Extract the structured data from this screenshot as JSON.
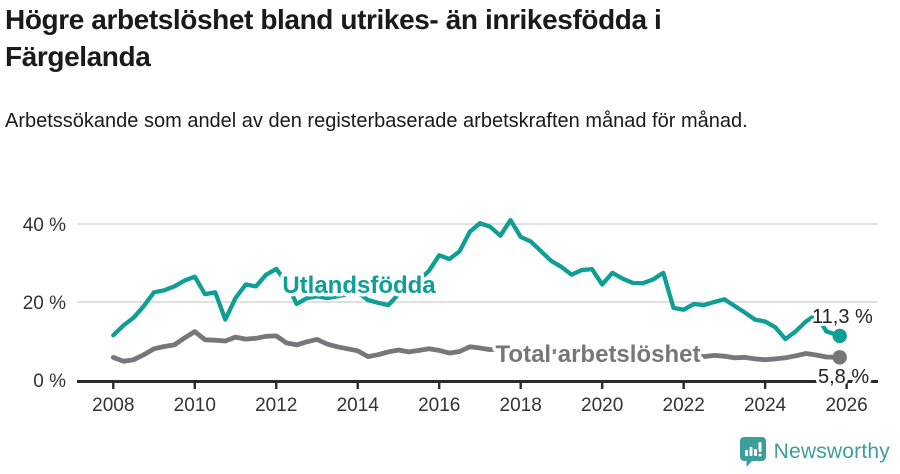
{
  "header": {
    "title": "Högre arbetslöshet bland utrikes- än inrikesfödda i Färgelanda",
    "subtitle": "Arbetssökande som andel av den registerbaserade arbetskraften månad för månad."
  },
  "chart_data": {
    "type": "line",
    "title": "Högre arbetslöshet bland utrikes- än inrikesfödda i Färgelanda",
    "xlabel": "",
    "ylabel": "",
    "grid": "horizontal-only",
    "xlim": [
      2007.1,
      2026.8
    ],
    "ylim": [
      0,
      44
    ],
    "x": [
      2008.0,
      2008.25,
      2008.5,
      2008.75,
      2009.0,
      2009.25,
      2009.5,
      2009.75,
      2010.0,
      2010.25,
      2010.5,
      2010.75,
      2011.0,
      2011.25,
      2011.5,
      2011.75,
      2012.0,
      2012.25,
      2012.5,
      2012.75,
      2013.0,
      2013.25,
      2013.5,
      2013.75,
      2014.0,
      2014.25,
      2014.5,
      2014.75,
      2015.0,
      2015.25,
      2015.5,
      2015.75,
      2016.0,
      2016.25,
      2016.5,
      2016.75,
      2017.0,
      2017.25,
      2017.5,
      2017.75,
      2018.0,
      2018.25,
      2018.5,
      2018.75,
      2019.0,
      2019.25,
      2019.5,
      2019.75,
      2020.0,
      2020.25,
      2020.5,
      2020.75,
      2021.0,
      2021.25,
      2021.5,
      2021.75,
      2022.0,
      2022.25,
      2022.5,
      2022.75,
      2023.0,
      2023.25,
      2023.5,
      2023.75,
      2024.0,
      2024.25,
      2024.5,
      2024.75,
      2025.0,
      2025.25,
      2025.5,
      2025.83
    ],
    "series": [
      {
        "name": "Utlandsfödda",
        "color": "#0f9e96",
        "end_label": "11,3 %",
        "end_value": 11.3,
        "values": [
          11.5,
          14.0,
          16.0,
          19.0,
          22.5,
          23.0,
          24.0,
          25.5,
          26.5,
          22.0,
          22.5,
          15.5,
          21.0,
          24.5,
          24.0,
          27.0,
          28.5,
          25.0,
          19.5,
          21.0,
          21.5,
          21.0,
          21.5,
          22.0,
          22.5,
          20.5,
          19.8,
          19.2,
          22.0,
          24.0,
          25.5,
          28.0,
          32.0,
          31.0,
          33.0,
          38.0,
          40.2,
          39.3,
          37.0,
          41.0,
          36.7,
          35.5,
          33.0,
          30.5,
          29.0,
          27.0,
          28.2,
          28.4,
          24.5,
          27.5,
          26.0,
          24.9,
          24.8,
          25.8,
          27.5,
          18.5,
          18.0,
          19.5,
          19.2,
          20.0,
          20.7,
          19.0,
          17.3,
          15.5,
          15.0,
          13.5,
          10.5,
          12.5,
          15.0,
          16.8,
          12.5,
          11.3
        ]
      },
      {
        "name": "Total arbetslöshet",
        "color": "#77777b",
        "end_label": "5,8 %",
        "end_value": 5.8,
        "values": [
          5.8,
          4.8,
          5.2,
          6.5,
          8.0,
          8.6,
          9.0,
          10.8,
          12.4,
          10.3,
          10.2,
          10.0,
          11.0,
          10.5,
          10.7,
          11.2,
          11.3,
          9.5,
          9.0,
          9.8,
          10.4,
          9.2,
          8.5,
          8.0,
          7.5,
          6.0,
          6.5,
          7.2,
          7.7,
          7.2,
          7.6,
          8.0,
          7.6,
          6.9,
          7.3,
          8.5,
          8.2,
          7.8,
          8.0,
          8.2,
          8.0,
          7.8,
          7.5,
          7.3,
          7.2,
          7.0,
          7.0,
          7.2,
          7.3,
          7.8,
          7.6,
          7.4,
          7.2,
          7.0,
          6.8,
          6.5,
          6.3,
          6.2,
          6.0,
          6.3,
          6.1,
          5.7,
          5.8,
          5.4,
          5.2,
          5.4,
          5.7,
          6.2,
          6.8,
          6.4,
          5.9,
          5.8
        ]
      }
    ],
    "yticks": [
      {
        "value": 0,
        "label": "0 %"
      },
      {
        "value": 20,
        "label": "20 %"
      },
      {
        "value": 40,
        "label": "40 %"
      }
    ],
    "xticks": [
      {
        "value": 2008,
        "label": "2008"
      },
      {
        "value": 2010,
        "label": "2010"
      },
      {
        "value": 2012,
        "label": "2012"
      },
      {
        "value": 2014,
        "label": "2014"
      },
      {
        "value": 2016,
        "label": "2016"
      },
      {
        "value": 2018,
        "label": "2018"
      },
      {
        "value": 2020,
        "label": "2020"
      },
      {
        "value": 2022,
        "label": "2022"
      },
      {
        "value": 2024,
        "label": "2024"
      },
      {
        "value": 2026,
        "label": "2026"
      }
    ],
    "colors": {
      "gridline": "#dcdcdc",
      "axis_line": "#2b2b2b",
      "axis_text": "#333333",
      "value_label_text": "#222222"
    }
  },
  "footer": {
    "brand": "Newsworthy",
    "brand_color": "#3d9e9e",
    "logo_icon": "newsworthy-bar-chart-bubble-icon"
  }
}
